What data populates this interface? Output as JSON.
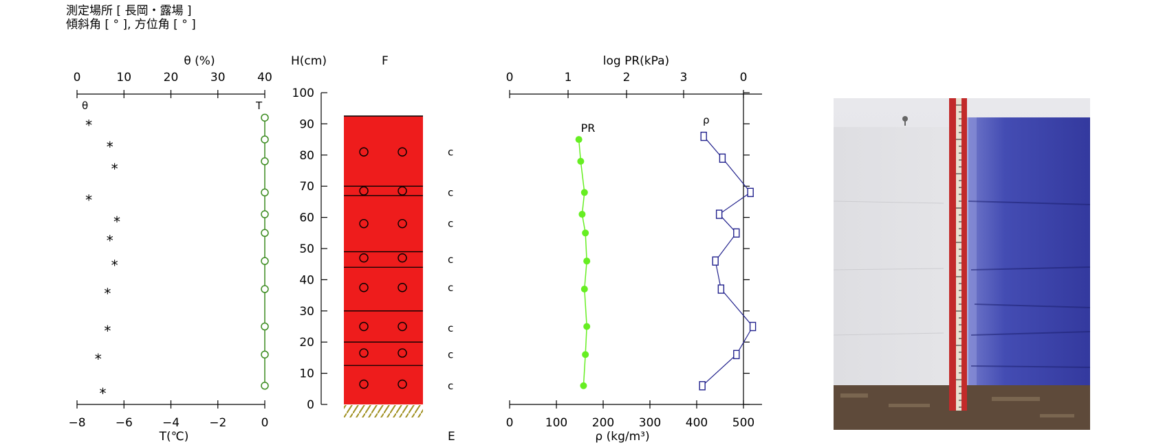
{
  "header": {
    "line1": "測定場所 [ 長岡・露場 ]",
    "line2": "傾斜角 [ ° ], 方位角 [ ° ]"
  },
  "colors": {
    "theta_star": "#000000",
    "temperature": "#3a8a1e",
    "layer_fill": "#ee1c1c",
    "ground_hatch": "#a09020",
    "pr": "#66ee22",
    "density": "#20208c"
  },
  "chart_data": [
    {
      "type": "scatter",
      "name": "water-content-and-temperature",
      "title": "",
      "top_axis": {
        "label": "θ (%)",
        "range": [
          0,
          40
        ],
        "ticks": [
          0,
          10,
          20,
          30,
          40
        ]
      },
      "bottom_axis": {
        "label": "T(℃)",
        "range": [
          -8,
          0
        ],
        "ticks": [
          "−8",
          "−4",
          "−2",
          "0"
        ],
        "tick_values": [
          -8,
          -4,
          -2,
          0
        ],
        "minor_ticks": [
          -6
        ]
      },
      "minor_label": "−6",
      "y_axis": {
        "label": "H(cm)",
        "range": [
          0,
          100
        ]
      },
      "corner_labels": {
        "theta": "θ",
        "temp": "T"
      },
      "theta_series": {
        "name": "θ",
        "marker": "*",
        "points": [
          {
            "x": 2.5,
            "h": 90
          },
          {
            "x": 7.0,
            "h": 83
          },
          {
            "x": 8.0,
            "h": 76
          },
          {
            "x": 2.5,
            "h": 66
          },
          {
            "x": 8.5,
            "h": 59
          },
          {
            "x": 7.0,
            "h": 53
          },
          {
            "x": 8.0,
            "h": 45
          },
          {
            "x": 6.5,
            "h": 36
          },
          {
            "x": 6.5,
            "h": 24
          },
          {
            "x": 4.5,
            "h": 15
          },
          {
            "x": 5.5,
            "h": 4
          }
        ]
      },
      "temperature_series": {
        "name": "T",
        "marker": "o",
        "points": [
          {
            "x": 0,
            "h": 92
          },
          {
            "x": 0,
            "h": 85
          },
          {
            "x": 0,
            "h": 78
          },
          {
            "x": 0,
            "h": 68
          },
          {
            "x": 0,
            "h": 61
          },
          {
            "x": 0,
            "h": 55
          },
          {
            "x": 0,
            "h": 46
          },
          {
            "x": 0,
            "h": 37
          },
          {
            "x": 0,
            "h": 25
          },
          {
            "x": 0,
            "h": 16
          },
          {
            "x": 0,
            "h": 6
          }
        ]
      }
    },
    {
      "type": "table",
      "name": "snow-stratigraphy",
      "y_axis": {
        "label": "H(cm)",
        "range": [
          0,
          100
        ],
        "ticks": [
          0,
          10,
          20,
          30,
          40,
          50,
          60,
          70,
          80,
          90,
          100
        ]
      },
      "column_label": "F",
      "bottom_label": "E",
      "snow_surface": 92.5,
      "layer_boundaries": [
        70,
        67,
        49,
        44,
        30,
        20,
        12.5
      ],
      "grain_markers": [
        81,
        68.5,
        58,
        47,
        37.5,
        25,
        16.5,
        6.5
      ],
      "hardness_labels": [
        {
          "h": 81,
          "text": "c"
        },
        {
          "h": 68,
          "text": "c"
        },
        {
          "h": 58,
          "text": "c"
        },
        {
          "h": 46.5,
          "text": "c"
        },
        {
          "h": 37.5,
          "text": "c"
        },
        {
          "h": 24.5,
          "text": "c"
        },
        {
          "h": 16,
          "text": "c"
        },
        {
          "h": 6,
          "text": "c"
        }
      ]
    },
    {
      "type": "line",
      "name": "density-and-resistance",
      "top_axis": {
        "label": "log PR(kPa)",
        "ticks": [
          "0",
          "1",
          "2",
          "3",
          "0"
        ]
      },
      "bottom_axis": {
        "label": "ρ (kg/m³)",
        "range": [
          0,
          530
        ],
        "ticks": [
          0,
          100,
          200,
          300,
          400,
          500
        ]
      },
      "y_axis": {
        "range": [
          0,
          100
        ]
      },
      "series": [
        {
          "name": "PR",
          "marker": "filled-circle",
          "x_units": "pixel-scale-on-bottom-axis",
          "points": [
            {
              "x": 148,
              "h": 85
            },
            {
              "x": 152,
              "h": 78
            },
            {
              "x": 160,
              "h": 68
            },
            {
              "x": 155,
              "h": 61
            },
            {
              "x": 162,
              "h": 55
            },
            {
              "x": 165,
              "h": 46
            },
            {
              "x": 160,
              "h": 37
            },
            {
              "x": 165,
              "h": 25
            },
            {
              "x": 162,
              "h": 16
            },
            {
              "x": 158,
              "h": 6
            }
          ]
        },
        {
          "name": "ρ",
          "marker": "square",
          "points": [
            {
              "x": 415,
              "h": 86
            },
            {
              "x": 455,
              "h": 79
            },
            {
              "x": 515,
              "h": 68
            },
            {
              "x": 448,
              "h": 61
            },
            {
              "x": 485,
              "h": 55
            },
            {
              "x": 440,
              "h": 46
            },
            {
              "x": 452,
              "h": 37
            },
            {
              "x": 520,
              "h": 25
            },
            {
              "x": 485,
              "h": 16
            },
            {
              "x": 412,
              "h": 6
            }
          ]
        }
      ]
    }
  ]
}
